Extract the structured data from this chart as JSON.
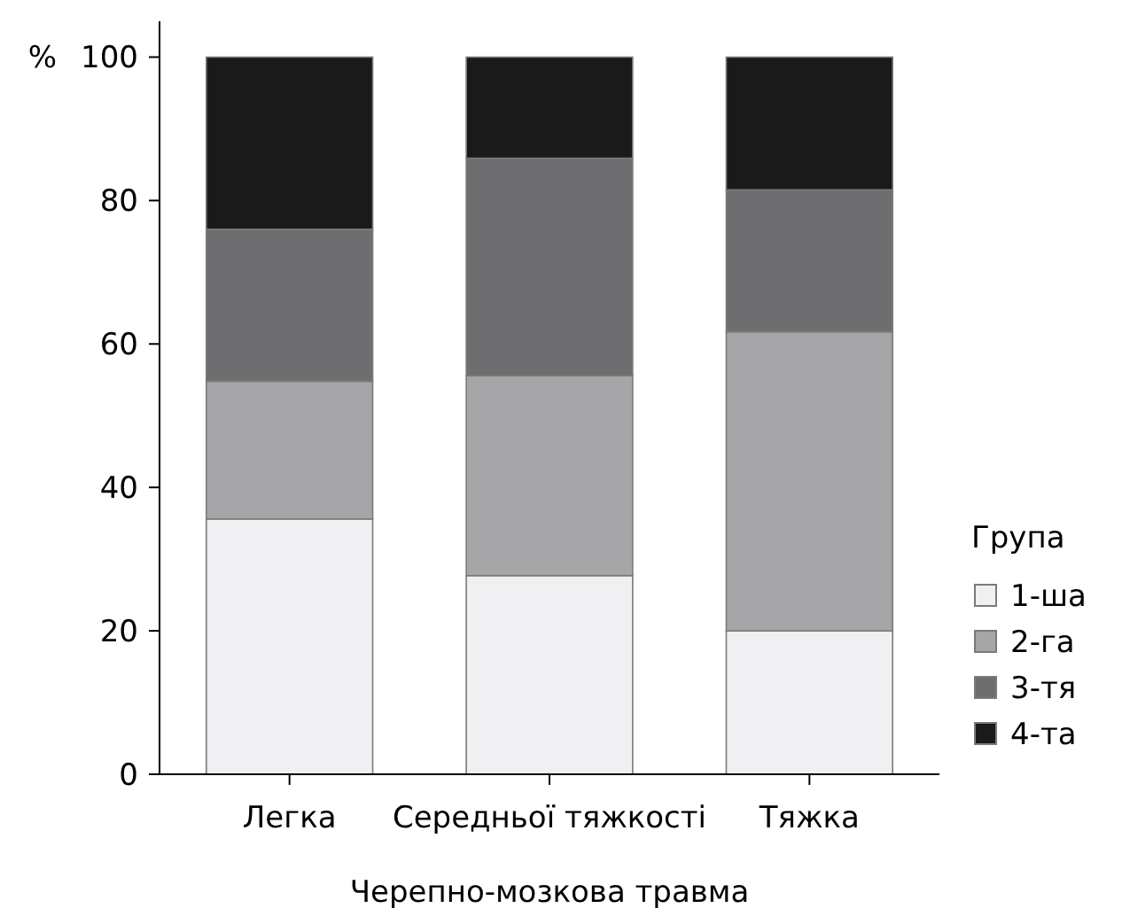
{
  "chart_data": {
    "type": "bar",
    "stacked": true,
    "xlabel": "Черепно-мозкова травма",
    "ylabel": "%",
    "legend_title": "Група",
    "legend": "right",
    "categories": [
      "Легка",
      "Середньої тяжкості",
      "Тяжка"
    ],
    "series": [
      {
        "name": "1-ша",
        "color": "#f0f0f2",
        "values": [
          35.6,
          27.7,
          20
        ]
      },
      {
        "name": "2-га",
        "color": "#a6a6a8",
        "values": [
          19.2,
          27.9,
          41.7
        ]
      },
      {
        "name": "3-тя",
        "color": "#6e6e70",
        "values": [
          21.2,
          30.3,
          19.8
        ]
      },
      {
        "name": "4-та",
        "color": "#1a1a1a",
        "values": [
          24,
          14.1,
          18.5
        ]
      }
    ],
    "ylim": [
      0,
      105
    ],
    "yticks": [
      0,
      20,
      40,
      60,
      80,
      100
    ],
    "grid": false
  }
}
